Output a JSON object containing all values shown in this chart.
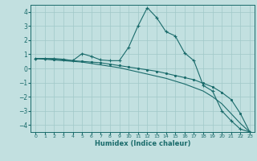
{
  "xlabel": "Humidex (Indice chaleur)",
  "xlim": [
    -0.5,
    23.5
  ],
  "ylim": [
    -4.5,
    4.5
  ],
  "yticks": [
    -4,
    -3,
    -2,
    -1,
    0,
    1,
    2,
    3,
    4
  ],
  "xticks": [
    0,
    1,
    2,
    3,
    4,
    5,
    6,
    7,
    8,
    9,
    10,
    11,
    12,
    13,
    14,
    15,
    16,
    17,
    18,
    19,
    20,
    21,
    22,
    23
  ],
  "background_color": "#c2e0e0",
  "grid_color": "#a0c8c8",
  "line_color": "#1a6b6b",
  "curve1_x": [
    0,
    1,
    2,
    3,
    4,
    5,
    6,
    7,
    8,
    9,
    10,
    11,
    12,
    13,
    14,
    15,
    16,
    17,
    18,
    19,
    20,
    21,
    22,
    23
  ],
  "curve1_y": [
    0.7,
    0.7,
    0.7,
    0.65,
    0.55,
    1.05,
    0.85,
    0.6,
    0.55,
    0.55,
    1.5,
    3.0,
    4.3,
    3.6,
    2.6,
    2.3,
    1.1,
    0.55,
    -1.2,
    -1.6,
    -3.0,
    -3.7,
    -4.3,
    -4.5
  ],
  "curve2_x": [
    0,
    1,
    2,
    3,
    4,
    5,
    6,
    7,
    8,
    9,
    10,
    11,
    12,
    13,
    14,
    15,
    16,
    17,
    18,
    19,
    20,
    21,
    22,
    23
  ],
  "curve2_y": [
    0.7,
    0.7,
    0.65,
    0.6,
    0.55,
    0.5,
    0.45,
    0.4,
    0.3,
    0.2,
    0.1,
    0.0,
    -0.1,
    -0.2,
    -0.35,
    -0.5,
    -0.65,
    -0.8,
    -1.05,
    -1.3,
    -1.7,
    -2.2,
    -3.2,
    -4.5
  ],
  "curve3_x": [
    0,
    1,
    2,
    3,
    4,
    5,
    6,
    7,
    8,
    9,
    10,
    11,
    12,
    13,
    14,
    15,
    16,
    17,
    18,
    19,
    20,
    21,
    22,
    23
  ],
  "curve3_y": [
    0.7,
    0.65,
    0.6,
    0.55,
    0.5,
    0.45,
    0.35,
    0.25,
    0.15,
    0.05,
    -0.1,
    -0.25,
    -0.4,
    -0.55,
    -0.7,
    -0.9,
    -1.1,
    -1.35,
    -1.6,
    -2.0,
    -2.5,
    -3.2,
    -3.9,
    -4.5
  ]
}
